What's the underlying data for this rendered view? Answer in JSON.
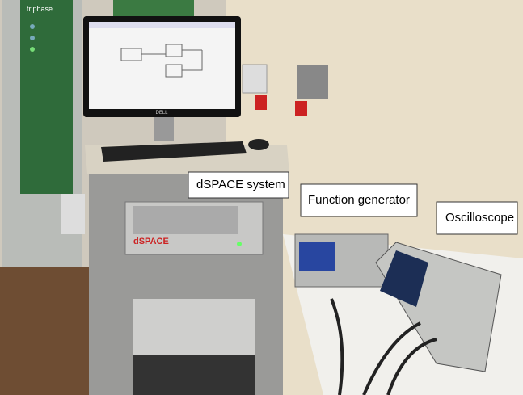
{
  "labels": {
    "dspace_system": "dSPACE system",
    "function_generator": "Function generator",
    "oscilloscope": "Oscilloscope"
  },
  "brands": {
    "cabinet": "triphase",
    "monitor": "DELL",
    "rack_unit": "dSPACE"
  }
}
